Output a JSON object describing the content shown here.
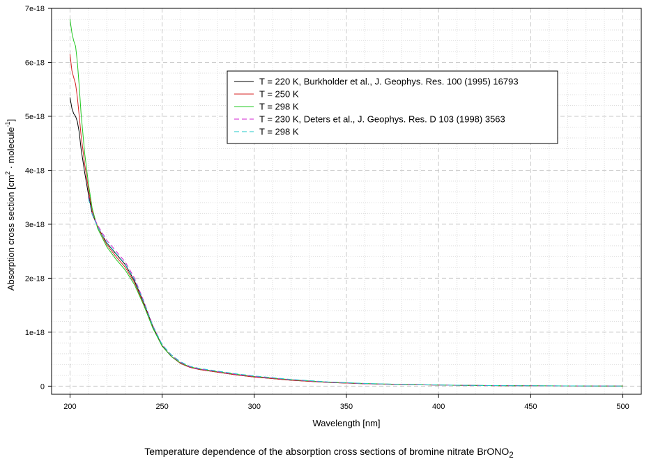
{
  "chart_data": {
    "type": "line",
    "xlabel": "Wavelength [nm]",
    "ylabel_parts": [
      "Absorption cross section [cm",
      "2",
      " · molecule",
      "-1",
      "]"
    ],
    "xlim": [
      190,
      510
    ],
    "ylim": [
      -1.5e-19,
      7e-18
    ],
    "xticks": [
      200,
      250,
      300,
      350,
      400,
      450,
      500
    ],
    "xtick_labels": [
      "200",
      "250",
      "300",
      "350",
      "400",
      "450",
      "500"
    ],
    "yticks": [
      0,
      1e-18,
      2e-18,
      3e-18,
      4e-18,
      5e-18,
      6e-18,
      7e-18
    ],
    "ytick_labels": [
      "0",
      "1e-18",
      "2e-18",
      "3e-18",
      "4e-18",
      "5e-18",
      "6e-18",
      "7e-18"
    ],
    "grid": true,
    "legend_position": "top-right",
    "series": [
      {
        "name": "T = 220 K, Burkholder et al., J. Geophys. Res. 100 (1995) 16793",
        "color": "#000000",
        "dash": "solid",
        "x": [
          200,
          201,
          202,
          203,
          204,
          205,
          206,
          208,
          210,
          212,
          215,
          220,
          225,
          230,
          235,
          240,
          245,
          250,
          255,
          260,
          265,
          270,
          280,
          290,
          300,
          320,
          340,
          360,
          380,
          400,
          420,
          440,
          460,
          480,
          500
        ],
        "y": [
          5.35e-18,
          5.15e-18,
          5.05e-18,
          5e-18,
          4.9e-18,
          4.7e-18,
          4.4e-18,
          3.95e-18,
          3.55e-18,
          3.2e-18,
          2.95e-18,
          2.65e-18,
          2.45e-18,
          2.25e-18,
          1.95e-18,
          1.55e-18,
          1.1e-18,
          7.5e-19,
          5.5e-19,
          4.2e-19,
          3.5e-19,
          3.1e-19,
          2.6e-19,
          2.1e-19,
          1.7e-19,
          1.1e-19,
          7e-20,
          4.5e-20,
          3e-20,
          2e-20,
          1.2e-20,
          8e-21,
          5e-21,
          3e-21,
          2e-21
        ]
      },
      {
        "name": "T = 250 K",
        "color": "#d42020",
        "dash": "solid",
        "x": [
          200,
          201,
          202,
          203,
          204,
          205,
          206,
          208,
          210,
          212,
          215,
          220,
          225,
          230,
          235,
          240,
          245,
          250,
          255,
          260,
          265,
          270,
          280,
          290,
          300,
          320,
          340,
          360,
          380,
          400,
          420,
          440,
          460,
          480,
          500
        ],
        "y": [
          6.15e-18,
          5.85e-18,
          5.72e-18,
          5.6e-18,
          5.35e-18,
          5e-18,
          4.65e-18,
          4.1e-18,
          3.65e-18,
          3.25e-18,
          2.95e-18,
          2.62e-18,
          2.4e-18,
          2.2e-18,
          1.92e-18,
          1.52e-18,
          1.08e-18,
          7.4e-19,
          5.5e-19,
          4.2e-19,
          3.5e-19,
          3.1e-19,
          2.6e-19,
          2.1e-19,
          1.7e-19,
          1.1e-19,
          7e-20,
          4.5e-20,
          3e-20,
          2e-20,
          1.2e-20,
          8e-21,
          5e-21,
          3e-21,
          2e-21
        ]
      },
      {
        "name": "T = 298 K",
        "color": "#20c820",
        "dash": "solid",
        "x": [
          200,
          201,
          202,
          203,
          204,
          205,
          206,
          208,
          210,
          212,
          215,
          220,
          225,
          230,
          235,
          240,
          245,
          250,
          255,
          260,
          265,
          270,
          280,
          290,
          300,
          320,
          340,
          360,
          380,
          400,
          420,
          440,
          460,
          480,
          500
        ],
        "y": [
          6.8e-18,
          6.55e-18,
          6.4e-18,
          6.3e-18,
          6e-18,
          5.55e-18,
          5.05e-18,
          4.3e-18,
          3.75e-18,
          3.3e-18,
          2.92e-18,
          2.58e-18,
          2.35e-18,
          2.15e-18,
          1.88e-18,
          1.5e-18,
          1.07e-18,
          7.4e-19,
          5.5e-19,
          4.3e-19,
          3.6e-19,
          3.2e-19,
          2.7e-19,
          2.2e-19,
          1.8e-19,
          1.2e-19,
          7.5e-20,
          5e-20,
          3.2e-20,
          2.1e-20,
          1.3e-20,
          9e-21,
          6e-21,
          4e-21,
          2e-21
        ]
      },
      {
        "name": "T = 230 K, Deters et al., J. Geophys. Res. D 103 (1998) 3563",
        "color": "#d020d0",
        "dash": "7,4",
        "x": [
          210,
          212,
          215,
          220,
          225,
          230,
          235,
          240,
          245,
          250,
          255,
          260,
          265,
          270,
          280,
          290,
          300,
          320,
          340,
          360,
          380,
          400,
          420,
          440,
          460,
          480,
          500
        ],
        "y": [
          3.5e-18,
          3.2e-18,
          2.98e-18,
          2.7e-18,
          2.5e-18,
          2.3e-18,
          2e-18,
          1.58e-18,
          1.12e-18,
          7.7e-19,
          5.7e-19,
          4.4e-19,
          3.6e-19,
          3.2e-19,
          2.7e-19,
          2.2e-19,
          1.8e-19,
          1.2e-19,
          7.5e-20,
          4.8e-20,
          3.2e-20,
          2.1e-20,
          1.3e-20,
          9e-21,
          6e-21,
          4e-21,
          2e-21
        ]
      },
      {
        "name": "T = 298 K",
        "color": "#20c8c8",
        "dash": "7,4",
        "x": [
          210,
          212,
          215,
          220,
          225,
          230,
          235,
          240,
          245,
          250,
          255,
          260,
          265,
          270,
          280,
          290,
          300,
          320,
          340,
          360,
          380,
          400,
          420,
          440,
          460,
          480,
          500
        ],
        "y": [
          3.48e-18,
          3.18e-18,
          2.95e-18,
          2.66e-18,
          2.46e-18,
          2.26e-18,
          1.97e-18,
          1.56e-18,
          1.11e-18,
          7.7e-19,
          5.8e-19,
          4.5e-19,
          3.7e-19,
          3.3e-19,
          2.8e-19,
          2.3e-19,
          1.9e-19,
          1.25e-19,
          8e-20,
          5e-20,
          3.4e-20,
          2.2e-20,
          1.4e-20,
          9e-21,
          6e-21,
          4e-21,
          2e-21
        ]
      }
    ]
  },
  "caption": {
    "text": "Temperature dependence of the absorption cross sections of bromine nitrate BrONO",
    "subscript": "2"
  }
}
